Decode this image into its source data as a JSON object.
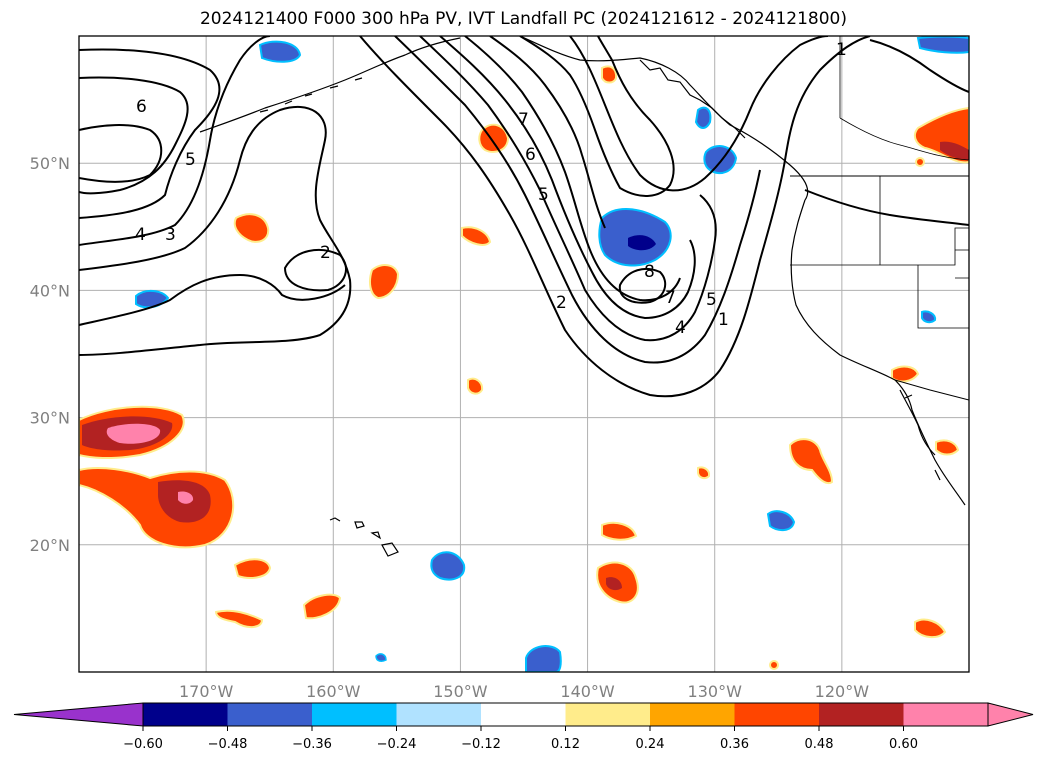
{
  "title": "2024121400 F000 300 hPa PV, IVT Landfall PC (2024121612 - 2024121800)",
  "map": {
    "lon_range": [
      -180,
      -110
    ],
    "lat_range": [
      10,
      60
    ],
    "lat_ticks": [
      {
        "value": 50,
        "label": "50°N"
      },
      {
        "value": 40,
        "label": "40°N"
      },
      {
        "value": 30,
        "label": "30°N"
      },
      {
        "value": 20,
        "label": "20°N"
      }
    ],
    "lon_ticks": [
      {
        "value": -170,
        "label": "170°W"
      },
      {
        "value": -160,
        "label": "160°W"
      },
      {
        "value": -150,
        "label": "150°W"
      },
      {
        "value": -140,
        "label": "140°W"
      },
      {
        "value": -130,
        "label": "130°W"
      },
      {
        "value": -120,
        "label": "120°W"
      }
    ],
    "contour_labels": [
      "6",
      "5",
      "4",
      "3",
      "2",
      "7",
      "6",
      "5",
      "8",
      "7",
      "5",
      "4",
      "2",
      "1",
      "1"
    ]
  },
  "colorbar": {
    "ticks": [
      "−0.60",
      "−0.48",
      "−0.36",
      "−0.24",
      "−0.12",
      "0.12",
      "0.24",
      "0.36",
      "0.48",
      "0.60"
    ],
    "colors": [
      "#9932cc",
      "#00008b",
      "#3a5fcd",
      "#00bfff",
      "#b0e2ff",
      "#ffffff",
      "#ffec8b",
      "#ffa500",
      "#ff4500",
      "#b22222",
      "#ff82ab",
      "#ff82ab"
    ]
  }
}
